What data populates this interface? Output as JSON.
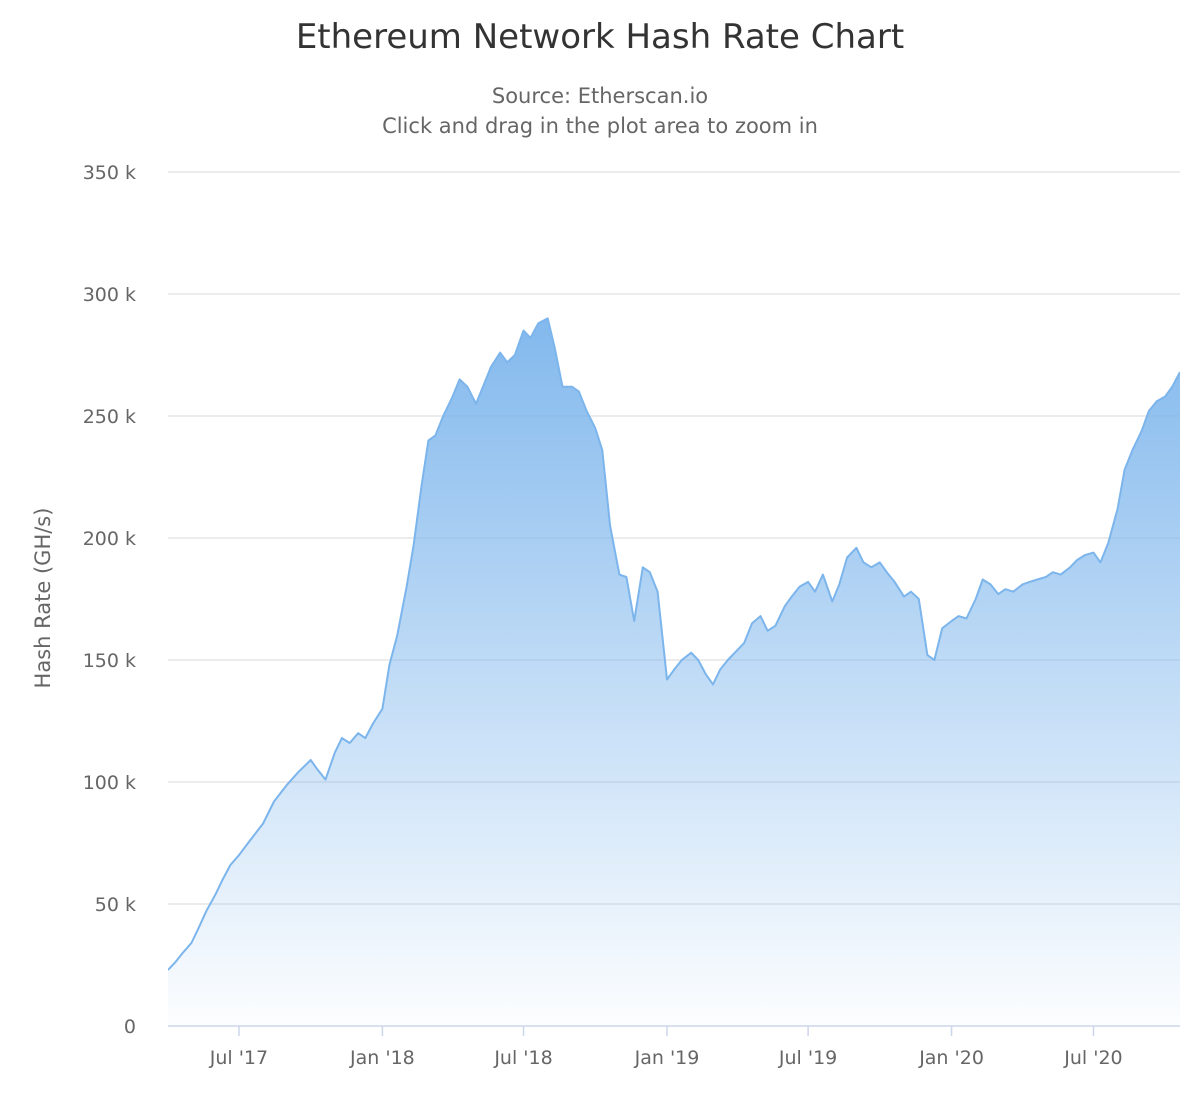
{
  "chart_data": {
    "type": "area",
    "title": "Ethereum Network Hash Rate Chart",
    "subtitles": [
      "Source: Etherscan.io",
      "Click and drag in the plot area to zoom in"
    ],
    "ylabel": "Hash Rate (GH/s)",
    "xlabel": "",
    "ylim": [
      0,
      350000
    ],
    "y_ticks": [
      0,
      50000,
      100000,
      150000,
      200000,
      250000,
      300000,
      350000
    ],
    "y_tick_labels": [
      "0",
      "50 k",
      "100 k",
      "150 k",
      "200 k",
      "250 k",
      "300 k",
      "350 k"
    ],
    "xlim": [
      "2017-04-01",
      "2020-10-20"
    ],
    "x_ticks": [
      "2017-07-01",
      "2018-01-01",
      "2018-07-01",
      "2019-01-01",
      "2019-07-01",
      "2020-01-01",
      "2020-07-01"
    ],
    "x_tick_labels": [
      "Jul '17",
      "Jan '18",
      "Jul '18",
      "Jan '19",
      "Jul '19",
      "Jan '20",
      "Jul '20"
    ],
    "grid": true,
    "legend": "none",
    "colors": {
      "line": "#7cb5ec",
      "fill_top": "#7cb5ec",
      "fill_bottom": "#ffffff",
      "grid": "#e6e6e6",
      "axis": "#ccd6eb"
    },
    "series": [
      {
        "x": [
          "2017-04-01",
          "2017-04-10",
          "2017-04-20",
          "2017-05-01",
          "2017-05-10",
          "2017-05-20",
          "2017-06-01",
          "2017-06-10",
          "2017-06-20",
          "2017-07-01",
          "2017-07-15",
          "2017-08-01",
          "2017-08-15",
          "2017-09-01",
          "2017-09-15",
          "2017-10-01",
          "2017-10-10",
          "2017-10-20",
          "2017-11-01",
          "2017-11-10",
          "2017-11-20",
          "2017-12-01",
          "2017-12-10",
          "2017-12-20",
          "2018-01-01",
          "2018-01-10",
          "2018-01-20",
          "2018-02-01",
          "2018-02-10",
          "2018-02-20",
          "2018-03-01",
          "2018-03-10",
          "2018-03-20",
          "2018-04-01",
          "2018-04-10",
          "2018-04-20",
          "2018-05-01",
          "2018-05-10",
          "2018-05-20",
          "2018-06-01",
          "2018-06-10",
          "2018-06-20",
          "2018-07-01",
          "2018-07-10",
          "2018-07-20",
          "2018-08-01",
          "2018-08-10",
          "2018-08-20",
          "2018-09-01",
          "2018-09-10",
          "2018-09-20",
          "2018-10-01",
          "2018-10-10",
          "2018-10-20",
          "2018-11-01",
          "2018-11-10",
          "2018-11-20",
          "2018-12-01",
          "2018-12-10",
          "2018-12-20",
          "2019-01-01",
          "2019-01-10",
          "2019-01-20",
          "2019-02-01",
          "2019-02-10",
          "2019-02-20",
          "2019-03-01",
          "2019-03-10",
          "2019-03-20",
          "2019-04-01",
          "2019-04-10",
          "2019-04-20",
          "2019-05-01",
          "2019-05-10",
          "2019-05-20",
          "2019-06-01",
          "2019-06-10",
          "2019-06-20",
          "2019-07-01",
          "2019-07-10",
          "2019-07-20",
          "2019-08-01",
          "2019-08-10",
          "2019-08-20",
          "2019-09-01",
          "2019-09-10",
          "2019-09-20",
          "2019-10-01",
          "2019-10-10",
          "2019-10-20",
          "2019-11-01",
          "2019-11-10",
          "2019-11-20",
          "2019-12-01",
          "2019-12-10",
          "2019-12-20",
          "2020-01-01",
          "2020-01-10",
          "2020-01-20",
          "2020-02-01",
          "2020-02-10",
          "2020-02-20",
          "2020-03-01",
          "2020-03-10",
          "2020-03-20",
          "2020-04-01",
          "2020-04-10",
          "2020-04-20",
          "2020-05-01",
          "2020-05-10",
          "2020-05-20",
          "2020-06-01",
          "2020-06-10",
          "2020-06-20",
          "2020-07-01",
          "2020-07-10",
          "2020-07-20",
          "2020-08-01",
          "2020-08-10",
          "2020-08-20",
          "2020-09-01",
          "2020-09-10",
          "2020-09-20",
          "2020-10-01",
          "2020-10-10",
          "2020-10-20"
        ],
        "y": [
          23000,
          26000,
          30000,
          34000,
          40000,
          47000,
          54000,
          60000,
          66000,
          70000,
          76000,
          83000,
          92000,
          99000,
          104000,
          109000,
          105000,
          101000,
          112000,
          118000,
          116000,
          120000,
          118000,
          124000,
          130000,
          148000,
          160000,
          180000,
          197000,
          221000,
          240000,
          242000,
          250000,
          258000,
          265000,
          262000,
          255000,
          262000,
          270000,
          276000,
          272000,
          275000,
          285000,
          282000,
          288000,
          290000,
          278000,
          262000,
          262000,
          260000,
          252000,
          245000,
          236000,
          205000,
          185000,
          184000,
          166000,
          188000,
          186000,
          178000,
          142000,
          146000,
          150000,
          153000,
          150000,
          144000,
          140000,
          146000,
          150000,
          154000,
          157000,
          165000,
          168000,
          162000,
          164000,
          172000,
          176000,
          180000,
          182000,
          178000,
          185000,
          174000,
          181000,
          192000,
          196000,
          190000,
          188000,
          190000,
          186000,
          182000,
          176000,
          178000,
          175000,
          152000,
          150000,
          163000,
          166000,
          168000,
          167000,
          175000,
          183000,
          181000,
          177000,
          179000,
          178000,
          181000,
          182000,
          183000,
          184000,
          186000,
          185000,
          188000,
          191000,
          193000,
          194000,
          190000,
          198000,
          212000,
          228000,
          236000,
          244000,
          252000,
          256000,
          258000,
          262000,
          268000
        ]
      }
    ]
  }
}
